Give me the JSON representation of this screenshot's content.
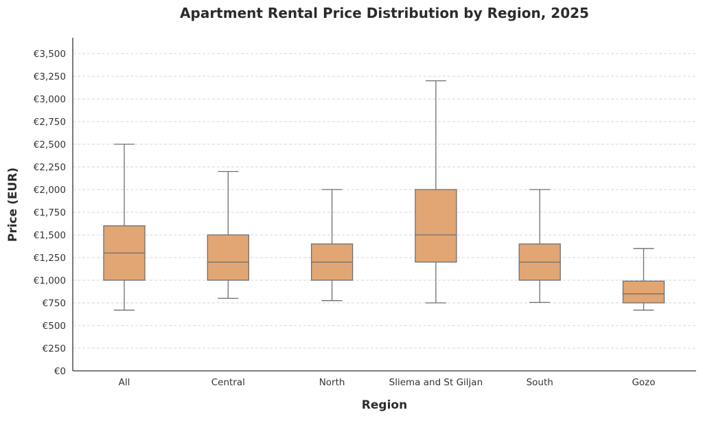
{
  "chart_data": {
    "type": "box",
    "title": "Apartment Rental Price Distribution by Region, 2025",
    "xlabel": "Region",
    "ylabel": "Price (EUR)",
    "ylim": [
      0,
      3600
    ],
    "y_ticks": [
      0,
      250,
      500,
      750,
      1000,
      1250,
      1500,
      1750,
      2000,
      2250,
      2500,
      2750,
      3000,
      3250,
      3500
    ],
    "y_tick_labels": [
      "€0",
      "€250",
      "€500",
      "€750",
      "€1,000",
      "€1,250",
      "€1,500",
      "€1,750",
      "€2,000",
      "€2,250",
      "€2,500",
      "€2,750",
      "€3,000",
      "€3,250",
      "€3,500"
    ],
    "grid": "horizontal-dashed",
    "box_color": "#e1a673",
    "categories": [
      "All",
      "Central",
      "North",
      "Sliema and St Giljan",
      "South",
      "Gozo"
    ],
    "boxes": [
      {
        "category": "All",
        "whisker_low": 670,
        "q1": 1000,
        "median": 1300,
        "q3": 1600,
        "whisker_high": 2500
      },
      {
        "category": "Central",
        "whisker_low": 800,
        "q1": 1000,
        "median": 1200,
        "q3": 1500,
        "whisker_high": 2200
      },
      {
        "category": "North",
        "whisker_low": 775,
        "q1": 1000,
        "median": 1200,
        "q3": 1400,
        "whisker_high": 2000
      },
      {
        "category": "Sliema and St Giljan",
        "whisker_low": 750,
        "q1": 1200,
        "median": 1500,
        "q3": 2000,
        "whisker_high": 3200
      },
      {
        "category": "South",
        "whisker_low": 755,
        "q1": 1000,
        "median": 1200,
        "q3": 1400,
        "whisker_high": 2000
      },
      {
        "category": "Gozo",
        "whisker_low": 670,
        "q1": 750,
        "median": 850,
        "q3": 990,
        "whisker_high": 1350
      }
    ]
  }
}
